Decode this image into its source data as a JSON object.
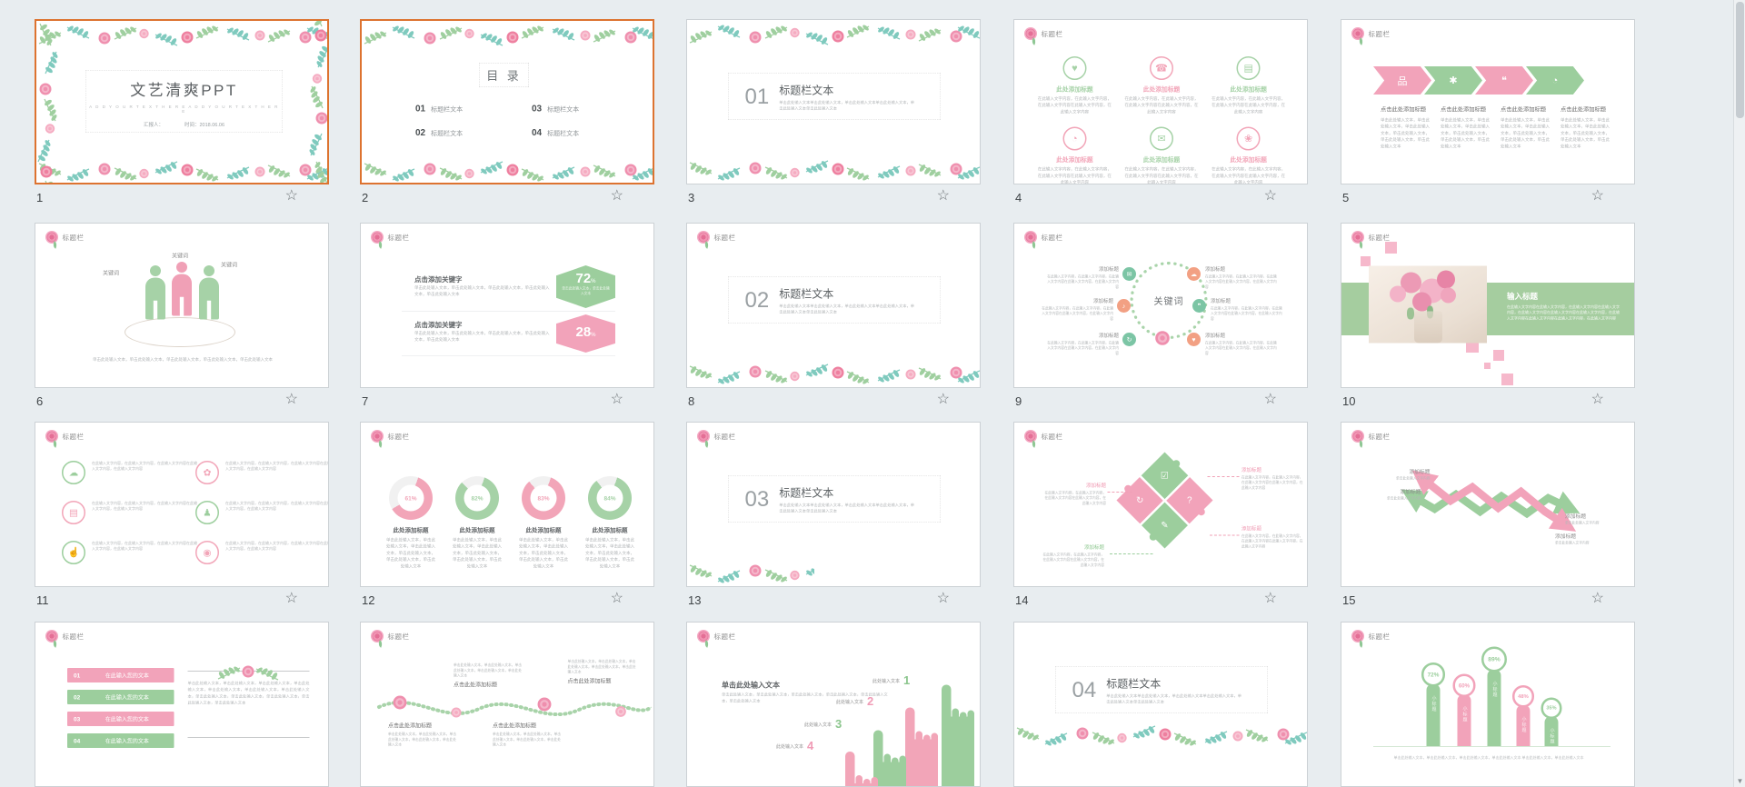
{
  "app": {
    "background": "#e8edf0",
    "selection_color": "#dd7330",
    "accent_pink": "#f2a5b8",
    "accent_green": "#a6d2a7",
    "accent_teal": "#7fcabe",
    "star_glyph": "☆",
    "scroll_down_glyph": "▼"
  },
  "placeholders": {
    "header_label": "标题栏",
    "add_title": "添加标题",
    "click_add_title": "点击此处添加标题",
    "here_add_title": "此处添加标题",
    "keyword": "关键词",
    "section_body": "单击此处输入文本单击此处输入文本，单击此处输入文本单击此处输入文本，单击此处输入文本单击此处输入文本",
    "body_1": "单击此处输入文本，单击此处输入文本，单击此处输入文本，单击此处输入文本，单击此处输入文本",
    "body_2": "单击此处输入文本，单击此处输入文本，单击此处输入文本，单击此处输入文本，单击此处输入文本，单击此处输入文本",
    "body_3": "在此输入文字内容，在此输入文字内容，在此输入文字内容在此输入文字内容，在此输入文字内容",
    "body_short": "单击此处输入文字内容",
    "badge_note": "单击此处输入文本，单击此处输入文本"
  },
  "slides": {
    "s1": {
      "number": "1",
      "selected": true,
      "title": "文艺清爽PPT",
      "subtitle": "A D D   Y O U R   T E X T   H E R E         A D D   Y O U R   T E X T   H E R E",
      "presenter": "汇报人：",
      "date": "时间：2018.06.06"
    },
    "s2": {
      "number": "2",
      "selected": true,
      "title": "目 录",
      "items": [
        {
          "num": "01",
          "label": "标题栏文本"
        },
        {
          "num": "02",
          "label": "标题栏文本"
        },
        {
          "num": "03",
          "label": "标题栏文本"
        },
        {
          "num": "04",
          "label": "标题栏文本"
        }
      ]
    },
    "s3": {
      "number": "3",
      "num": "01",
      "title": "标题栏文本"
    },
    "s4": {
      "number": "4",
      "icons": [
        {
          "name": "heart-icon",
          "glyph": "♥"
        },
        {
          "name": "phone-icon",
          "glyph": "☎"
        },
        {
          "name": "briefcase-icon",
          "glyph": "▤"
        },
        {
          "name": "chart-icon",
          "glyph": "◔"
        },
        {
          "name": "mail-icon",
          "glyph": "✉"
        },
        {
          "name": "flower-icon",
          "glyph": "❀"
        }
      ]
    },
    "s5": {
      "number": "5",
      "icons": [
        {
          "name": "hierarchy-icon",
          "glyph": "品"
        },
        {
          "name": "gears-icon",
          "glyph": "✱"
        },
        {
          "name": "chat-icon",
          "glyph": "❝"
        },
        {
          "name": "gauge-icon",
          "glyph": "◔"
        }
      ]
    },
    "s6": {
      "number": "6"
    },
    "s7": {
      "number": "7",
      "blocks": [
        {
          "title": "点击添加关键字",
          "value": "72",
          "unit": "%"
        },
        {
          "title": "点击添加关键字",
          "value": "28",
          "unit": "%"
        }
      ]
    },
    "s8": {
      "number": "8",
      "num": "02",
      "title": "标题栏文本"
    },
    "s9": {
      "number": "9",
      "center": "关键词",
      "icons": [
        {
          "name": "mail-icon",
          "glyph": "✉"
        },
        {
          "name": "music-icon",
          "glyph": "♪"
        },
        {
          "name": "refresh-icon",
          "glyph": "↻"
        },
        {
          "name": "cloud-icon",
          "glyph": "☁"
        },
        {
          "name": "chat-icon",
          "glyph": "❞"
        },
        {
          "name": "like-icon",
          "glyph": "♥"
        }
      ]
    },
    "s10": {
      "number": "10",
      "title": "输入标题",
      "body": "在此输入文字内容在此输入文字内容，在此输入文字内容在此输入文字内容，在此输入文字内容在此输入文字内容在此输入文字内容，在此输入文字内容在此输入文字内容在此输入文字内容，在此输入文字内容"
    },
    "s11": {
      "number": "11",
      "icons": [
        {
          "name": "cloud-icon",
          "glyph": "☁"
        },
        {
          "name": "flower-icon",
          "glyph": "✿"
        },
        {
          "name": "document-icon",
          "glyph": "▤"
        },
        {
          "name": "team-icon",
          "glyph": "♟"
        },
        {
          "name": "like-icon",
          "glyph": "☝"
        },
        {
          "name": "search-icon",
          "glyph": "◉"
        }
      ]
    },
    "s12": {
      "number": "12",
      "charts": [
        {
          "value": "61%",
          "pct": 61
        },
        {
          "value": "82%",
          "pct": 82
        },
        {
          "value": "83%",
          "pct": 83
        },
        {
          "value": "84%",
          "pct": 84
        }
      ]
    },
    "s13": {
      "number": "13",
      "num": "03",
      "title": "标题栏文本"
    },
    "s14": {
      "number": "14",
      "icons": [
        {
          "name": "checklist-icon",
          "glyph": "☑"
        },
        {
          "name": "refresh-icon",
          "glyph": "↻"
        },
        {
          "name": "question-icon",
          "glyph": "?"
        },
        {
          "name": "pencil-icon",
          "glyph": "✎"
        }
      ]
    },
    "s15": {
      "number": "15"
    },
    "s16": {
      "bars": [
        {
          "num": "01"
        },
        {
          "num": "02"
        },
        {
          "num": "03"
        },
        {
          "num": "04"
        }
      ],
      "bar_label": "在此输入您的文本",
      "body": "单击此处输入文本，单击此处输入文本，单击此处输入文本，单击此处输入文本，单击此处输入文本，单击此处输入文本，单击此处输入文本，单击此处输入文本，单击此处输入文本，单击此处输入文本，单击此处输入文本，单击此处输入文本"
    },
    "s17": {},
    "s18": {
      "heading": "单击此处输入文本",
      "item_label": "此处输入文本",
      "items": [
        {
          "num": "1"
        },
        {
          "num": "2"
        },
        {
          "num": "3"
        },
        {
          "num": "4"
        }
      ]
    },
    "s19": {
      "num": "04",
      "title": "标题栏文本"
    },
    "s20": {
      "stem_label": "小标题",
      "bars": [
        {
          "value": "72%",
          "pct": 72
        },
        {
          "value": "60%",
          "pct": 60
        },
        {
          "value": "89%",
          "pct": 89
        },
        {
          "value": "48%",
          "pct": 48
        },
        {
          "value": "35%",
          "pct": 35
        }
      ],
      "body": "单击此处输入文本，单击此处输入文本，单击此处输入文本，单击此处输入文本 单击此处输入文本，单击此处输入文本"
    }
  }
}
